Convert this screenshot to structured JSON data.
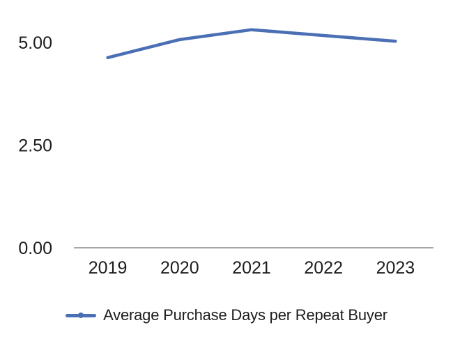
{
  "chart_data": {
    "type": "line",
    "title": "",
    "xlabel": "",
    "ylabel": "",
    "categories": [
      "2019",
      "2020",
      "2021",
      "2022",
      "2023"
    ],
    "series": [
      {
        "name": "Average Purchase Days per Repeat Buyer",
        "values": [
          4.63,
          5.07,
          5.31,
          5.17,
          5.03
        ],
        "color": "#4a6fb4"
      }
    ],
    "yticks": [
      {
        "value": 0,
        "label": "0.00"
      },
      {
        "value": 2.5,
        "label": "2.50"
      },
      {
        "value": 5,
        "label": "5.00"
      }
    ],
    "ylim": [
      0,
      6.0
    ],
    "grid": false,
    "legend_position": "bottom",
    "axis_color": "#a6a6a6",
    "text_color": "#1d1d1d",
    "background_color": "#ffffff"
  }
}
